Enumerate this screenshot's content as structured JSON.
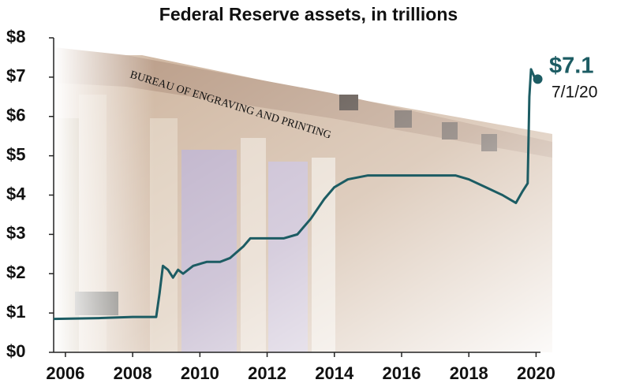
{
  "chart_data": {
    "type": "line",
    "title": "Federal Reserve assets, in trillions",
    "background_text": "BUREAU OF ENGRAVING AND PRINTING",
    "annotations": [
      "$7.1",
      "7/1/20"
    ],
    "color": "#1c5c63",
    "x": [
      2005.65,
      2007,
      2008.0,
      2008.7,
      2008.8,
      2008.9,
      2009.05,
      2009.2,
      2009.35,
      2009.5,
      2009.8,
      2010.2,
      2010.6,
      2010.9,
      2011.3,
      2011.5,
      2012.0,
      2012.5,
      2012.9,
      2013.3,
      2013.7,
      2014.0,
      2014.4,
      2015.0,
      2016.0,
      2017.0,
      2017.6,
      2018.0,
      2018.5,
      2019.0,
      2019.4,
      2019.6,
      2019.75,
      2019.8,
      2019.85,
      2019.95,
      2020.05
    ],
    "values": [
      0.85,
      0.87,
      0.9,
      0.9,
      1.5,
      2.2,
      2.1,
      1.9,
      2.1,
      2.0,
      2.2,
      2.3,
      2.3,
      2.4,
      2.7,
      2.9,
      2.9,
      2.9,
      3.0,
      3.4,
      3.9,
      4.2,
      4.4,
      4.5,
      4.5,
      4.5,
      4.5,
      4.4,
      4.2,
      4.0,
      3.8,
      4.1,
      4.3,
      6.5,
      7.2,
      7.0,
      6.95
    ],
    "xlim": [
      2005.65,
      2020.6
    ],
    "xticks": [
      2006,
      2008,
      2010,
      2012,
      2014,
      2016,
      2018,
      2020
    ],
    "ylim": [
      0,
      8
    ],
    "yticks": [
      {
        "value": 0,
        "label": "$0"
      },
      {
        "value": 1,
        "label": "$1"
      },
      {
        "value": 2,
        "label": "$2"
      },
      {
        "value": 3,
        "label": "$3"
      },
      {
        "value": 4,
        "label": "$4"
      },
      {
        "value": 5,
        "label": "$5"
      },
      {
        "value": 6,
        "label": "$6"
      },
      {
        "value": 7,
        "label": "$7"
      },
      {
        "value": 8,
        "label": "$8"
      }
    ]
  }
}
